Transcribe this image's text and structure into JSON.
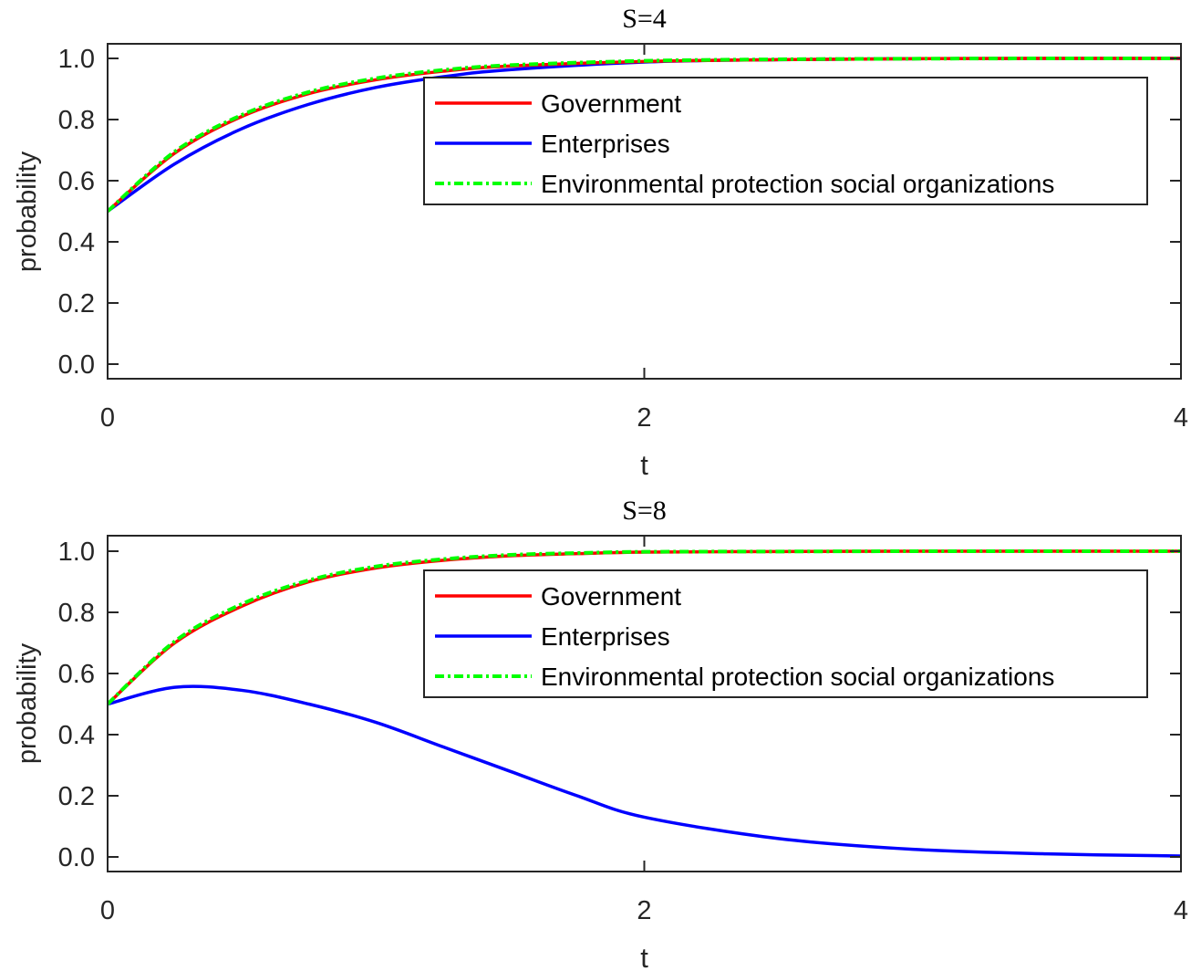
{
  "chart_data": [
    {
      "type": "line",
      "title": "S=4",
      "xlabel": "t",
      "ylabel": "probability",
      "xlim": [
        0,
        4
      ],
      "ylim": [
        -0.05,
        1.05
      ],
      "xticks": [
        "0",
        "2",
        "4"
      ],
      "yticks": [
        "0.0",
        "0.2",
        "0.4",
        "0.6",
        "0.8",
        "1.0"
      ],
      "grid": false,
      "legend_position": "upper right (inside)",
      "x": [
        0,
        0.25,
        0.5,
        0.75,
        1.0,
        1.25,
        1.5,
        2.0,
        2.5,
        3.0,
        3.5,
        4.0
      ],
      "series": [
        {
          "name": "Government",
          "color": "#ff0000",
          "style": "solid",
          "values": [
            0.5,
            0.69,
            0.81,
            0.885,
            0.93,
            0.958,
            0.975,
            0.99,
            0.996,
            0.999,
            1.0,
            1.0
          ]
        },
        {
          "name": "Enterprises",
          "color": "#0000ff",
          "style": "solid",
          "values": [
            0.5,
            0.655,
            0.77,
            0.85,
            0.905,
            0.94,
            0.963,
            0.988,
            0.996,
            0.999,
            1.0,
            1.0
          ]
        },
        {
          "name": "Environmental protection social organizations",
          "color": "#00ff00",
          "style": "dashdot",
          "values": [
            0.5,
            0.695,
            0.815,
            0.89,
            0.935,
            0.962,
            0.978,
            0.992,
            0.997,
            0.999,
            1.0,
            1.0
          ]
        }
      ]
    },
    {
      "type": "line",
      "title": "S=8",
      "xlabel": "t",
      "ylabel": "probability",
      "xlim": [
        0,
        4
      ],
      "ylim": [
        -0.05,
        1.05
      ],
      "xticks": [
        "0",
        "2",
        "4"
      ],
      "yticks": [
        "0.0",
        "0.2",
        "0.4",
        "0.6",
        "0.8",
        "1.0"
      ],
      "grid": false,
      "legend_position": "upper right (inside)",
      "x": [
        0,
        0.25,
        0.5,
        0.75,
        1.0,
        1.25,
        1.5,
        1.75,
        2.0,
        2.5,
        3.0,
        3.5,
        4.0
      ],
      "series": [
        {
          "name": "Government",
          "color": "#ff0000",
          "style": "solid",
          "values": [
            0.5,
            0.7,
            0.82,
            0.9,
            0.945,
            0.97,
            0.985,
            0.992,
            0.997,
            0.999,
            1.0,
            1.0,
            1.0
          ]
        },
        {
          "name": "Enterprises",
          "color": "#0000ff",
          "style": "solid",
          "values": [
            0.5,
            0.555,
            0.545,
            0.5,
            0.44,
            0.36,
            0.28,
            0.2,
            0.13,
            0.06,
            0.025,
            0.01,
            0.003
          ]
        },
        {
          "name": "Environmental protection social organizations",
          "color": "#00ff00",
          "style": "dashdot",
          "values": [
            0.5,
            0.705,
            0.827,
            0.905,
            0.95,
            0.974,
            0.988,
            0.994,
            0.998,
            0.999,
            1.0,
            1.0,
            1.0
          ]
        }
      ]
    }
  ],
  "panels": [
    {
      "title": "S=4",
      "xlabel": "t",
      "ylabel": "probability"
    },
    {
      "title": "S=8",
      "xlabel": "t",
      "ylabel": "probability"
    }
  ],
  "legend": {
    "items": [
      "Government",
      "Enterprises",
      "Environmental protection social organizations"
    ]
  }
}
